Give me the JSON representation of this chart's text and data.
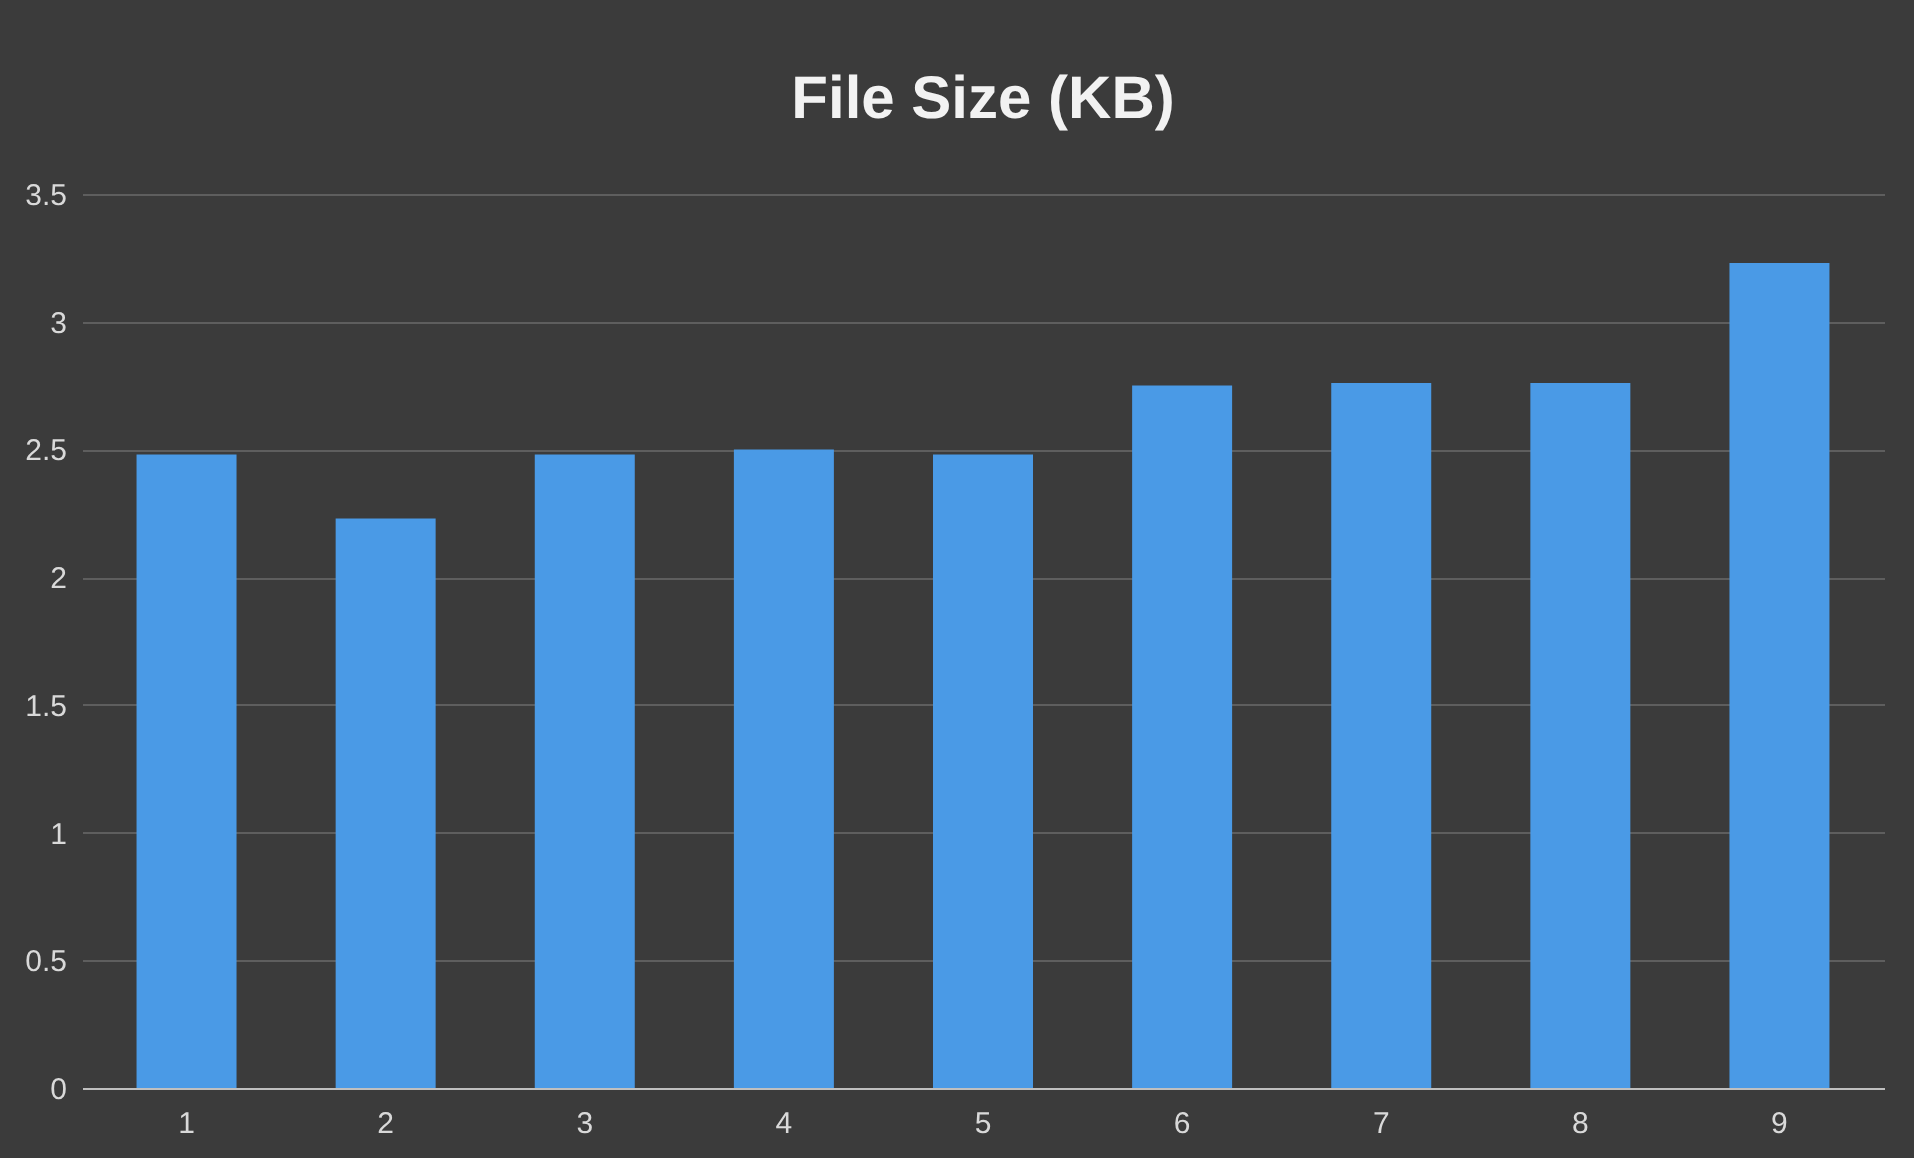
{
  "chart_data": {
    "type": "bar",
    "title": "File Size (KB)",
    "categories": [
      "1",
      "2",
      "3",
      "4",
      "5",
      "6",
      "7",
      "8",
      "9"
    ],
    "values": [
      2.48,
      2.23,
      2.48,
      2.5,
      2.48,
      2.75,
      2.76,
      2.76,
      3.23
    ],
    "color": "#4a9ae6",
    "ylim": [
      0,
      3.5
    ],
    "yticks": [
      0,
      0.5,
      1,
      1.5,
      2,
      2.5,
      3,
      3.5
    ],
    "grid": "y"
  }
}
